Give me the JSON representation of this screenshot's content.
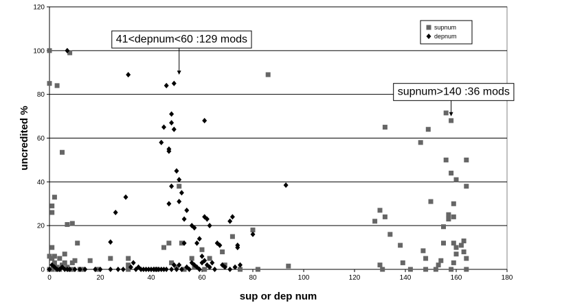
{
  "chart_data": {
    "type": "scatter",
    "xlabel": "sup or dep num",
    "ylabel": "uncredited %",
    "xlim": [
      0,
      180
    ],
    "ylim": [
      0,
      120
    ],
    "x_ticks": [
      0,
      20,
      40,
      60,
      80,
      100,
      120,
      140,
      160,
      180
    ],
    "y_ticks": [
      0,
      20,
      40,
      60,
      80,
      100,
      120
    ],
    "grid": "horizontal",
    "legend_position": "top-right",
    "plot_background": "#ffffff",
    "series": [
      {
        "name": "supnum",
        "marker": "square",
        "color": "#666666",
        "points": [
          [
            0,
            100
          ],
          [
            0,
            85
          ],
          [
            1,
            29
          ],
          [
            1,
            26
          ],
          [
            0,
            6
          ],
          [
            1,
            10
          ],
          [
            2,
            33
          ],
          [
            3,
            84
          ],
          [
            5,
            53.5
          ],
          [
            7,
            20.5
          ],
          [
            8,
            99
          ],
          [
            9,
            21
          ],
          [
            1,
            5
          ],
          [
            2,
            3
          ],
          [
            3,
            1
          ],
          [
            4,
            0
          ],
          [
            5,
            2
          ],
          [
            6,
            7
          ],
          [
            7,
            1
          ],
          [
            8,
            0
          ],
          [
            9,
            3
          ],
          [
            10,
            4
          ],
          [
            11,
            12
          ],
          [
            12,
            0
          ],
          [
            13,
            0
          ],
          [
            16,
            4
          ],
          [
            19,
            0
          ],
          [
            4,
            5
          ],
          [
            6,
            3
          ],
          [
            2,
            6
          ],
          [
            0,
            0
          ],
          [
            1,
            0
          ],
          [
            3,
            0
          ],
          [
            9,
            0
          ],
          [
            24,
            5
          ],
          [
            31,
            5
          ],
          [
            31,
            2
          ],
          [
            31,
            0
          ],
          [
            42,
            0
          ],
          [
            45,
            10
          ],
          [
            47,
            12
          ],
          [
            48,
            3
          ],
          [
            50,
            1
          ],
          [
            51,
            38
          ],
          [
            52,
            12
          ],
          [
            53,
            0
          ],
          [
            56,
            5
          ],
          [
            57,
            1
          ],
          [
            60,
            9
          ],
          [
            61,
            0
          ],
          [
            63,
            5
          ],
          [
            68,
            8
          ],
          [
            69,
            2
          ],
          [
            72,
            15
          ],
          [
            75,
            0
          ],
          [
            80,
            18
          ],
          [
            82,
            0
          ],
          [
            86,
            89
          ],
          [
            94,
            1.5
          ],
          [
            128,
            22
          ],
          [
            130,
            27
          ],
          [
            130,
            2
          ],
          [
            131,
            0
          ],
          [
            132,
            24
          ],
          [
            132,
            65
          ],
          [
            134,
            16
          ],
          [
            138,
            11
          ],
          [
            139,
            3
          ],
          [
            142,
            0
          ],
          [
            146,
            58
          ],
          [
            147,
            8.5
          ],
          [
            148,
            5
          ],
          [
            148,
            0
          ],
          [
            149,
            64
          ],
          [
            150,
            31
          ],
          [
            152,
            0
          ],
          [
            153,
            2
          ],
          [
            154,
            4
          ],
          [
            155,
            12
          ],
          [
            155,
            19.5
          ],
          [
            156,
            50
          ],
          [
            156,
            71.5
          ],
          [
            157,
            23
          ],
          [
            157,
            25
          ],
          [
            158,
            68
          ],
          [
            158,
            44
          ],
          [
            158,
            0
          ],
          [
            159,
            30
          ],
          [
            159,
            12
          ],
          [
            159,
            24
          ],
          [
            159,
            3
          ],
          [
            160,
            10
          ],
          [
            160,
            41
          ],
          [
            160,
            7
          ],
          [
            162,
            11
          ],
          [
            163,
            13
          ],
          [
            163,
            8
          ],
          [
            164,
            50
          ],
          [
            164,
            38
          ],
          [
            164,
            5
          ],
          [
            164,
            0
          ]
        ]
      },
      {
        "name": "depnum",
        "marker": "diamond",
        "color": "#000000",
        "points": [
          [
            0,
            0
          ],
          [
            1,
            2
          ],
          [
            2,
            1
          ],
          [
            3,
            0
          ],
          [
            4,
            0
          ],
          [
            5,
            1
          ],
          [
            6,
            0
          ],
          [
            7,
            0
          ],
          [
            7,
            100
          ],
          [
            8,
            0
          ],
          [
            10,
            0
          ],
          [
            12,
            0
          ],
          [
            14,
            0
          ],
          [
            18,
            0
          ],
          [
            20,
            0
          ],
          [
            24,
            12.5
          ],
          [
            24,
            0
          ],
          [
            26,
            26
          ],
          [
            27,
            0
          ],
          [
            29,
            0
          ],
          [
            30,
            33
          ],
          [
            31,
            89
          ],
          [
            32,
            1
          ],
          [
            33,
            3
          ],
          [
            34,
            0
          ],
          [
            35,
            1
          ],
          [
            36,
            0
          ],
          [
            37,
            0
          ],
          [
            38,
            0
          ],
          [
            39,
            0
          ],
          [
            40,
            0
          ],
          [
            41,
            0
          ],
          [
            42,
            0
          ],
          [
            43,
            0
          ],
          [
            44,
            58
          ],
          [
            44,
            0
          ],
          [
            45,
            65
          ],
          [
            45,
            0
          ],
          [
            46,
            84
          ],
          [
            46,
            0
          ],
          [
            47,
            30
          ],
          [
            47,
            55
          ],
          [
            47,
            54
          ],
          [
            48,
            71
          ],
          [
            48,
            67
          ],
          [
            48,
            38
          ],
          [
            48,
            0
          ],
          [
            49,
            64
          ],
          [
            49,
            85
          ],
          [
            49,
            2
          ],
          [
            50,
            45
          ],
          [
            50,
            0
          ],
          [
            51,
            41
          ],
          [
            51,
            31
          ],
          [
            51,
            2
          ],
          [
            52,
            35
          ],
          [
            52,
            0
          ],
          [
            53,
            23
          ],
          [
            53,
            12
          ],
          [
            54,
            27
          ],
          [
            54,
            1
          ],
          [
            55,
            0
          ],
          [
            56,
            20
          ],
          [
            56,
            3
          ],
          [
            57,
            19
          ],
          [
            57,
            2
          ],
          [
            58,
            12
          ],
          [
            58,
            1
          ],
          [
            59,
            14
          ],
          [
            59,
            0
          ],
          [
            60,
            6
          ],
          [
            60,
            3
          ],
          [
            61,
            68
          ],
          [
            61,
            24
          ],
          [
            61,
            4
          ],
          [
            62,
            23
          ],
          [
            62,
            2
          ],
          [
            63,
            20
          ],
          [
            63,
            1
          ],
          [
            64,
            3
          ],
          [
            65,
            0
          ],
          [
            66,
            12
          ],
          [
            67,
            11
          ],
          [
            68,
            2
          ],
          [
            69,
            1
          ],
          [
            71,
            22
          ],
          [
            71,
            0
          ],
          [
            72,
            24
          ],
          [
            73,
            1
          ],
          [
            74,
            10
          ],
          [
            74,
            11
          ],
          [
            75,
            2
          ],
          [
            80,
            16
          ],
          [
            93,
            38.5
          ]
        ]
      }
    ],
    "annotations": [
      {
        "text": "41<depnum<60 :129 mods",
        "x": 52,
        "y": 105,
        "arrow_x": 51,
        "arrow_y": 89
      },
      {
        "text": "supnum>140 :36 mods",
        "x": 159,
        "y": 81,
        "arrow_x": 158,
        "arrow_y": 70
      }
    ]
  }
}
